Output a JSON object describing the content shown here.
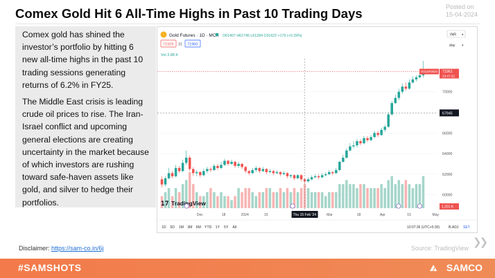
{
  "title": "Comex Gold Hit 6 All-Time Highs in Past 10 Trading Days",
  "posted": {
    "label": "Posted on",
    "date": "15-04-2024"
  },
  "body": {
    "p1": "Comex gold has shined the investor’s portfolio by hitting 6 new all-time highs in the past 10 trading sessions generating returns of 6.2% in FY25.",
    "p2": "The Middle East crisis is leading crude oil prices to rise. The Iran-Israel conflict and upcoming general elections are creating uncertainty in the market because of which investors are rushing toward safe-haven assets like gold, and silver to hedge their portfolios."
  },
  "chart_widget": {
    "symbol": "Gold Futures · 1D · MCX",
    "ohlc": "O61407 H61745 L61284 C61622 +179 (+0.29%)",
    "price_a": "71929",
    "price_b": "31",
    "price_c": "71960",
    "volume_label": "Vol  3.88 K",
    "currency": "INR",
    "scale_mode": "day",
    "last_price_tag": "GOLD#2024",
    "last_price": "71961",
    "last_price_time": "13:47:22",
    "crosshair_price": "67945",
    "volume_tag": "1.201 K",
    "logo": "TradingView",
    "date_tag": "Thu 15 Feb '24",
    "ranges": [
      "1D",
      "5D",
      "1M",
      "3M",
      "6M",
      "YTD",
      "1Y",
      "5Y",
      "All"
    ],
    "time_readout": "10:07:36 (UTC+5:30)",
    "adjust_label": "B-ADJ",
    "settlement_label": "SET"
  },
  "chart_data": {
    "type": "candlestick",
    "x_ticks": [
      "Dec",
      "18",
      "2024",
      "15",
      "Feb",
      "18",
      "Mar",
      "18",
      "Apr",
      "15",
      "May"
    ],
    "y_ticks": [
      60000,
      62000,
      64000,
      66000,
      68000,
      70000
    ],
    "ylim": [
      58500,
      73200
    ],
    "volume_scale_max": 10,
    "candles": [
      {
        "o": 61500,
        "c": 61000,
        "h": 61800,
        "l": 60700,
        "v": 3
      },
      {
        "o": 61000,
        "c": 61600,
        "h": 61800,
        "l": 60800,
        "v": 4
      },
      {
        "o": 61600,
        "c": 62100,
        "h": 62600,
        "l": 61500,
        "v": 5
      },
      {
        "o": 62100,
        "c": 61800,
        "h": 62300,
        "l": 61600,
        "v": 3
      },
      {
        "o": 61800,
        "c": 62600,
        "h": 62900,
        "l": 61700,
        "v": 5
      },
      {
        "o": 62600,
        "c": 62300,
        "h": 62800,
        "l": 62100,
        "v": 4
      },
      {
        "o": 62300,
        "c": 63100,
        "h": 63400,
        "l": 62200,
        "v": 6
      },
      {
        "o": 63100,
        "c": 63600,
        "h": 64300,
        "l": 62900,
        "v": 7
      },
      {
        "o": 63600,
        "c": 62500,
        "h": 63800,
        "l": 62300,
        "v": 9
      },
      {
        "o": 62500,
        "c": 62100,
        "h": 62700,
        "l": 61800,
        "v": 6
      },
      {
        "o": 62100,
        "c": 62200,
        "h": 62400,
        "l": 61800,
        "v": 4
      },
      {
        "o": 62200,
        "c": 61900,
        "h": 62300,
        "l": 61700,
        "v": 3
      },
      {
        "o": 61900,
        "c": 62300,
        "h": 62500,
        "l": 61800,
        "v": 3
      },
      {
        "o": 62300,
        "c": 62500,
        "h": 62700,
        "l": 62100,
        "v": 4
      },
      {
        "o": 62500,
        "c": 62400,
        "h": 62700,
        "l": 62200,
        "v": 5
      },
      {
        "o": 62400,
        "c": 62800,
        "h": 63000,
        "l": 62300,
        "v": 4
      },
      {
        "o": 62800,
        "c": 62600,
        "h": 63000,
        "l": 62400,
        "v": 3
      },
      {
        "o": 62600,
        "c": 62900,
        "h": 63200,
        "l": 62500,
        "v": 4
      },
      {
        "o": 62900,
        "c": 63300,
        "h": 63500,
        "l": 62800,
        "v": 3
      },
      {
        "o": 63300,
        "c": 63000,
        "h": 63400,
        "l": 62800,
        "v": 3
      },
      {
        "o": 63000,
        "c": 63200,
        "h": 63400,
        "l": 62900,
        "v": 2
      },
      {
        "o": 63200,
        "c": 62800,
        "h": 63300,
        "l": 62600,
        "v": 3
      },
      {
        "o": 62800,
        "c": 63000,
        "h": 63200,
        "l": 62600,
        "v": 5
      },
      {
        "o": 63000,
        "c": 62700,
        "h": 63100,
        "l": 62500,
        "v": 4
      },
      {
        "o": 62700,
        "c": 62300,
        "h": 62800,
        "l": 62100,
        "v": 5
      },
      {
        "o": 62300,
        "c": 62100,
        "h": 62400,
        "l": 61900,
        "v": 5
      },
      {
        "o": 62100,
        "c": 62400,
        "h": 62600,
        "l": 62000,
        "v": 4
      },
      {
        "o": 62400,
        "c": 62600,
        "h": 62800,
        "l": 62200,
        "v": 3
      },
      {
        "o": 62600,
        "c": 62300,
        "h": 62700,
        "l": 62100,
        "v": 4
      },
      {
        "o": 62300,
        "c": 62500,
        "h": 62700,
        "l": 62200,
        "v": 4
      },
      {
        "o": 62500,
        "c": 62200,
        "h": 62600,
        "l": 62000,
        "v": 5
      },
      {
        "o": 62200,
        "c": 62300,
        "h": 62500,
        "l": 62100,
        "v": 5
      },
      {
        "o": 62300,
        "c": 62100,
        "h": 62400,
        "l": 61900,
        "v": 4
      },
      {
        "o": 62100,
        "c": 62200,
        "h": 62400,
        "l": 62000,
        "v": 4
      },
      {
        "o": 62200,
        "c": 62000,
        "h": 62300,
        "l": 61800,
        "v": 5
      },
      {
        "o": 62000,
        "c": 62100,
        "h": 62300,
        "l": 61900,
        "v": 4
      },
      {
        "o": 62100,
        "c": 61800,
        "h": 62200,
        "l": 61600,
        "v": 5
      },
      {
        "o": 61800,
        "c": 61900,
        "h": 62000,
        "l": 61600,
        "v": 4
      },
      {
        "o": 61900,
        "c": 61600,
        "h": 62000,
        "l": 61400,
        "v": 5
      },
      {
        "o": 61600,
        "c": 61900,
        "h": 62000,
        "l": 61500,
        "v": 4
      },
      {
        "o": 61900,
        "c": 61500,
        "h": 62000,
        "l": 61300,
        "v": 5
      },
      {
        "o": 61500,
        "c": 61300,
        "h": 61600,
        "l": 61100,
        "v": 6
      },
      {
        "o": 61300,
        "c": 61500,
        "h": 61700,
        "l": 61200,
        "v": 5
      },
      {
        "o": 61500,
        "c": 61700,
        "h": 61900,
        "l": 61400,
        "v": 4
      },
      {
        "o": 61700,
        "c": 61800,
        "h": 62000,
        "l": 61600,
        "v": 4
      },
      {
        "o": 61800,
        "c": 61700,
        "h": 62000,
        "l": 61500,
        "v": 4
      },
      {
        "o": 61700,
        "c": 61900,
        "h": 62100,
        "l": 61600,
        "v": 4
      },
      {
        "o": 61900,
        "c": 62000,
        "h": 62200,
        "l": 61800,
        "v": 3
      },
      {
        "o": 62000,
        "c": 62200,
        "h": 62400,
        "l": 61900,
        "v": 4
      },
      {
        "o": 62200,
        "c": 62100,
        "h": 62300,
        "l": 61900,
        "v": 4
      },
      {
        "o": 62100,
        "c": 62400,
        "h": 62600,
        "l": 62000,
        "v": 4
      },
      {
        "o": 62400,
        "c": 63200,
        "h": 63300,
        "l": 62300,
        "v": 6
      },
      {
        "o": 63200,
        "c": 63600,
        "h": 63900,
        "l": 63100,
        "v": 6
      },
      {
        "o": 63600,
        "c": 64300,
        "h": 64500,
        "l": 63500,
        "v": 7
      },
      {
        "o": 64300,
        "c": 64700,
        "h": 65000,
        "l": 64200,
        "v": 6
      },
      {
        "o": 64700,
        "c": 64800,
        "h": 65200,
        "l": 64500,
        "v": 6
      },
      {
        "o": 64800,
        "c": 65200,
        "h": 65400,
        "l": 64600,
        "v": 5
      },
      {
        "o": 65200,
        "c": 65000,
        "h": 65400,
        "l": 64800,
        "v": 6
      },
      {
        "o": 65000,
        "c": 65500,
        "h": 65700,
        "l": 64900,
        "v": 6
      },
      {
        "o": 65500,
        "c": 65300,
        "h": 65700,
        "l": 65100,
        "v": 5
      },
      {
        "o": 65300,
        "c": 65600,
        "h": 65800,
        "l": 65200,
        "v": 5
      },
      {
        "o": 65600,
        "c": 66000,
        "h": 66200,
        "l": 65500,
        "v": 5
      },
      {
        "o": 66000,
        "c": 65800,
        "h": 66200,
        "l": 65600,
        "v": 5
      },
      {
        "o": 65800,
        "c": 66300,
        "h": 66500,
        "l": 65700,
        "v": 6
      },
      {
        "o": 66300,
        "c": 66600,
        "h": 66800,
        "l": 66100,
        "v": 5
      },
      {
        "o": 66600,
        "c": 67800,
        "h": 68000,
        "l": 66500,
        "v": 7
      },
      {
        "o": 67800,
        "c": 68900,
        "h": 69100,
        "l": 67700,
        "v": 8
      },
      {
        "o": 68900,
        "c": 69400,
        "h": 69700,
        "l": 68800,
        "v": 6
      },
      {
        "o": 69400,
        "c": 70000,
        "h": 70300,
        "l": 69200,
        "v": 7
      },
      {
        "o": 70000,
        "c": 70500,
        "h": 70800,
        "l": 69800,
        "v": 6
      },
      {
        "o": 70500,
        "c": 70300,
        "h": 70900,
        "l": 70100,
        "v": 7
      },
      {
        "o": 70300,
        "c": 70900,
        "h": 71200,
        "l": 70200,
        "v": 6
      },
      {
        "o": 70900,
        "c": 71200,
        "h": 71500,
        "l": 70800,
        "v": 5
      },
      {
        "o": 71200,
        "c": 71400,
        "h": 71600,
        "l": 71000,
        "v": 6
      },
      {
        "o": 71400,
        "c": 71600,
        "h": 71900,
        "l": 71300,
        "v": 6
      },
      {
        "o": 71600,
        "c": 71960,
        "h": 73000,
        "l": 71400,
        "v": 8
      }
    ]
  },
  "disclaimer": {
    "label": "Disclaimer:",
    "link": "https://sam-co.in/6j"
  },
  "source": "Source: TradingView",
  "footer": {
    "hashtag": "#SAMSHOTS",
    "brand": "SAMCO"
  },
  "colors": {
    "up": "#26a69a",
    "down": "#ef5350",
    "vol_up": "#a5d6c9",
    "vol_down": "#f6b5b3",
    "footer": "#f37a4a",
    "panel": "#ebebeb"
  }
}
